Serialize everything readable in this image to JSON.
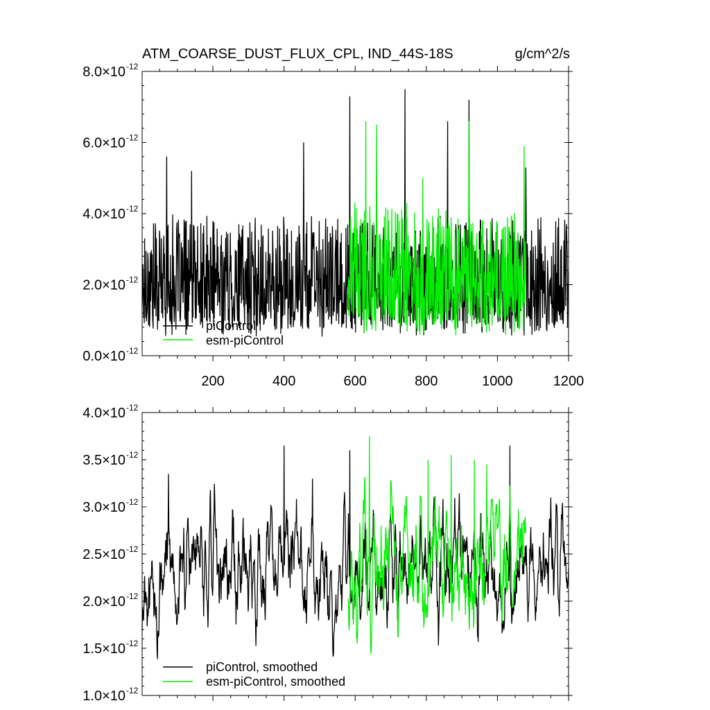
{
  "header": {
    "title": "ATM_COARSE_DUST_FLUX_CPL, IND_44S-18S",
    "units": "g/cm^2/s"
  },
  "colors": {
    "piControl": "#000000",
    "esm_piControl": "#00ee00"
  },
  "chart_data": [
    {
      "type": "line",
      "title": "ATM_COARSE_DUST_FLUX_CPL, IND_44S-18S",
      "units": "g/cm^2/s",
      "xlim": [
        1,
        1200
      ],
      "ylim": [
        0.0,
        8e-12
      ],
      "x_tick_values": [
        200,
        400,
        600,
        800,
        1000,
        1200
      ],
      "x_tick_labels": [
        "200",
        "400",
        "600",
        "800",
        "1000",
        "1200"
      ],
      "y_tick_values": [
        0.0,
        2e-12,
        4e-12,
        6e-12,
        8e-12
      ],
      "y_tick_mantissas": [
        "0.0",
        "2.0",
        "4.0",
        "6.0",
        "8.0"
      ],
      "y_tick_exponent": "-12",
      "legend_position": "bottom-left",
      "series": [
        {
          "name": "piControl",
          "color": "#000000",
          "x_range": [
            1,
            1200
          ],
          "approx_mean": 2.3e-12,
          "approx_min": 4e-13,
          "approx_max": 7.5e-12,
          "approx_peaks": [
            [
              70,
              5.6e-12
            ],
            [
              140,
              5.2e-12
            ],
            [
              455,
              6e-12
            ],
            [
              585,
              7.3e-12
            ],
            [
              740,
              7.5e-12
            ],
            [
              860,
              6.6e-12
            ],
            [
              920,
              7.2e-12
            ],
            [
              1080,
              5.3e-12
            ]
          ]
        },
        {
          "name": "esm-piControl",
          "color": "#00ee00",
          "x_range": [
            580,
            1080
          ],
          "approx_mean": 2.5e-12,
          "approx_min": 5e-13,
          "approx_max": 6.6e-12,
          "approx_peaks": [
            [
              630,
              6.6e-12
            ],
            [
              660,
              6.5e-12
            ],
            [
              790,
              5e-12
            ],
            [
              920,
              6.6e-12
            ],
            [
              1075,
              5.9e-12
            ]
          ]
        }
      ]
    },
    {
      "type": "line",
      "xlim": [
        1,
        1200
      ],
      "ylim": [
        1e-12,
        4e-12
      ],
      "x_tick_values": [
        200,
        400,
        600,
        800,
        1000,
        1200
      ],
      "y_tick_values": [
        1e-12,
        1.5e-12,
        2e-12,
        2.5e-12,
        3e-12,
        3.5e-12,
        4e-12
      ],
      "y_tick_mantissas": [
        "1.0",
        "1.5",
        "2.0",
        "2.5",
        "3.0",
        "3.5",
        "4.0"
      ],
      "y_tick_exponent": "-12",
      "legend_position": "bottom-left",
      "series": [
        {
          "name": "piControl, smoothed",
          "color": "#000000",
          "x_range": [
            1,
            1200
          ],
          "approx_mean": 2.3e-12,
          "approx_min": 1.2e-12,
          "approx_max": 3.65e-12,
          "approx_peaks": [
            [
              75,
              3.35e-12
            ],
            [
              400,
              3.65e-12
            ],
            [
              480,
              3.3e-12
            ],
            [
              585,
              3.6e-12
            ],
            [
              1035,
              3.65e-12
            ],
            [
              1150,
              3.1e-12
            ]
          ]
        },
        {
          "name": "esm-piControl, smoothed",
          "color": "#00ee00",
          "x_range": [
            580,
            1080
          ],
          "approx_mean": 2.35e-12,
          "approx_min": 1.25e-12,
          "approx_max": 3.75e-12,
          "approx_peaks": [
            [
              640,
              3.75e-12
            ],
            [
              805,
              3.5e-12
            ],
            [
              870,
              3.55e-12
            ],
            [
              935,
              3.5e-12
            ],
            [
              970,
              3.45e-12
            ]
          ]
        }
      ]
    }
  ]
}
